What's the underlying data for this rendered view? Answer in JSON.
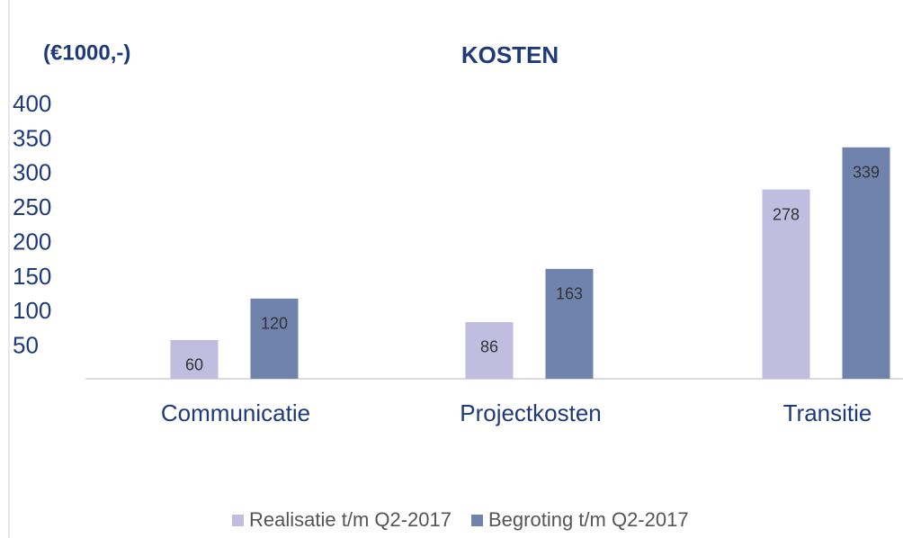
{
  "chart_data": {
    "type": "bar",
    "title": "KOSTEN",
    "y_label": "(€1000,-)",
    "categories": [
      "Communicatie",
      "Projectkosten",
      "Transitie"
    ],
    "series": [
      {
        "name": "Realisatie t/m Q2-2017",
        "color": "#c0bde0",
        "values": [
          60,
          86,
          278
        ]
      },
      {
        "name": "Begroting t/m Q2-2017",
        "color": "#6f83ad",
        "values": [
          120,
          163,
          339
        ]
      }
    ],
    "ylim": [
      0,
      400
    ],
    "yticks": [
      50,
      100,
      150,
      200,
      250,
      300,
      350,
      400
    ],
    "grid": false,
    "legend": "bottom"
  }
}
